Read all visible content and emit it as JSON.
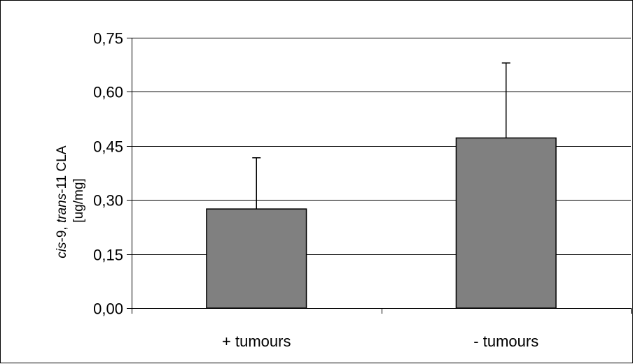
{
  "chart_data": {
    "type": "bar",
    "categories": [
      "+ tumours",
      "- tumours"
    ],
    "values": [
      0.275,
      0.472
    ],
    "error_upper": [
      0.417,
      0.68
    ],
    "ylim": [
      0,
      0.75
    ],
    "yticks": [
      "0,00",
      "0,15",
      "0,30",
      "0,45",
      "0,60",
      "0,75"
    ],
    "ytick_values": [
      0,
      0.15,
      0.3,
      0.45,
      0.6,
      0.75
    ],
    "ylabel": {
      "line1_italic_a": "cis",
      "line1_plain_a": "-9, ",
      "line1_italic_b": "trans",
      "line1_plain_b": "-11 CLA",
      "line2": "[ug/mg]"
    },
    "xlabel": "",
    "title": "",
    "grid": true,
    "legend": false,
    "colors": {
      "bar_fill": "#808080",
      "bar_stroke": "#000000",
      "grid": "#000000"
    }
  }
}
